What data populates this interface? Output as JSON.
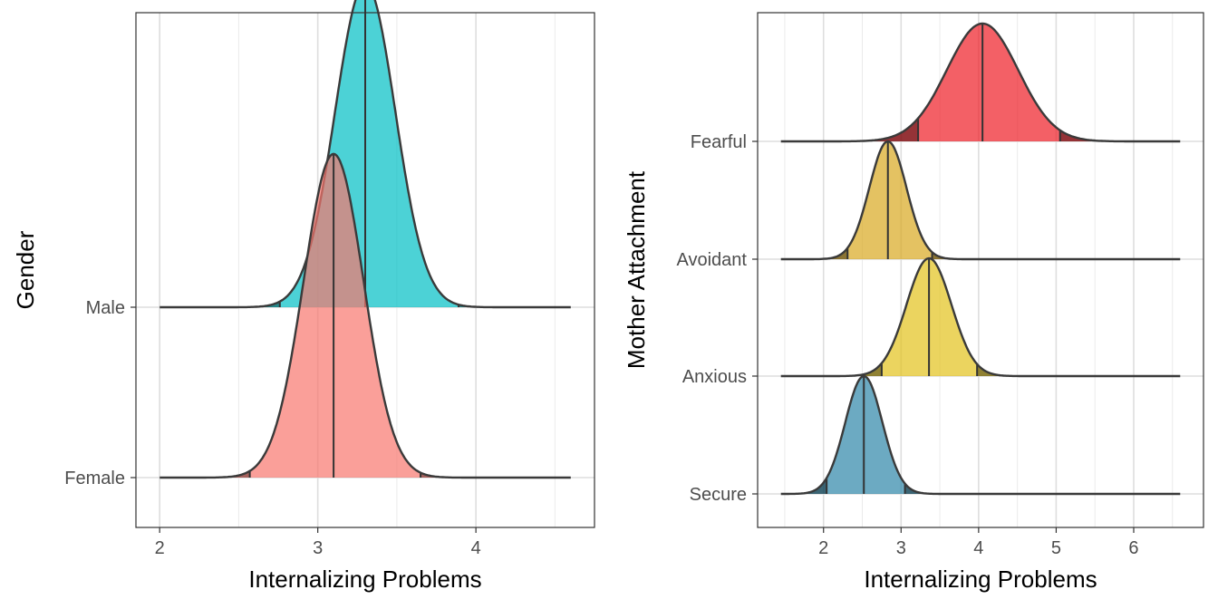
{
  "chart_data": [
    {
      "type": "ridgeline",
      "xlabel": "Internalizing Problems",
      "ylabel": "Gender",
      "xlim": [
        1.85,
        4.75
      ],
      "x_ticks": [
        2,
        3,
        4
      ],
      "x_minor_ticks": [
        2.5,
        3.5,
        4.5
      ],
      "grid": true,
      "ridge_scale": 1.9,
      "x_range": [
        2.0,
        4.6
      ],
      "tail_darkening": 0.4,
      "series": [
        {
          "name": "Female",
          "mean": 3.1,
          "sd": 0.19,
          "lower": 2.57,
          "upper": 3.65,
          "color": "#F8766D"
        },
        {
          "name": "Male",
          "mean": 3.3,
          "sd": 0.19,
          "lower": 2.76,
          "upper": 3.89,
          "color": "#00BFC4"
        }
      ]
    },
    {
      "type": "ridgeline",
      "xlabel": "Internalizing Problems",
      "ylabel": "Mother Attachment",
      "xlim": [
        1.15,
        6.9
      ],
      "x_ticks": [
        2,
        3,
        4,
        5,
        6
      ],
      "x_minor_ticks": [
        1.5,
        2.5,
        3.5,
        4.5,
        5.5,
        6.5
      ],
      "grid": true,
      "ridge_scale": 1.0,
      "x_range": [
        1.45,
        6.6
      ],
      "tail_darkening": 0.45,
      "series": [
        {
          "name": "Secure",
          "mean": 2.52,
          "sd": 0.24,
          "lower": 2.04,
          "upper": 3.05,
          "color": "#2E86A8"
        },
        {
          "name": "Anxious",
          "mean": 3.36,
          "sd": 0.29,
          "lower": 2.75,
          "upper": 3.98,
          "color": "#E3C21B"
        },
        {
          "name": "Avoidant",
          "mean": 2.83,
          "sd": 0.24,
          "lower": 2.31,
          "upper": 3.4,
          "color": "#D9A81F"
        },
        {
          "name": "Fearful",
          "mean": 4.05,
          "sd": 0.46,
          "lower": 3.22,
          "upper": 5.05,
          "color": "#EE1C25"
        }
      ]
    }
  ]
}
